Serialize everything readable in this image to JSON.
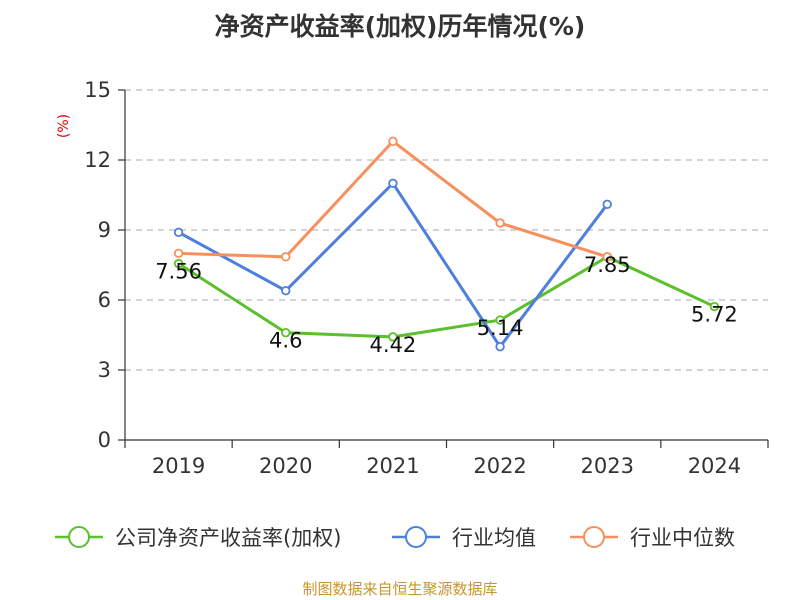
{
  "chart_data": {
    "type": "line",
    "title": "净资产收益率(加权)历年情况(%)",
    "unit_label": "(%)",
    "categories": [
      "2019",
      "2020",
      "2021",
      "2022",
      "2023",
      "2024"
    ],
    "ylim": [
      0,
      15
    ],
    "yticks": [
      0,
      3,
      6,
      9,
      12,
      15
    ],
    "grid": true,
    "series": [
      {
        "name": "公司净资产收益率(加权)",
        "color": "#5bc02b",
        "values": [
          7.56,
          4.6,
          4.42,
          5.14,
          7.85,
          5.72
        ],
        "labels": [
          "7.56",
          "4.6",
          "4.42",
          "5.14",
          "7.85",
          "5.72"
        ]
      },
      {
        "name": "行业均值",
        "color": "#4e7fdc",
        "values": [
          8.9,
          6.4,
          11.0,
          4.0,
          10.1,
          null
        ]
      },
      {
        "name": "行业中位数",
        "color": "#f7905c",
        "values": [
          8.0,
          7.85,
          12.8,
          9.3,
          7.85,
          null
        ]
      }
    ],
    "legend_position": "bottom"
  },
  "source": "制图数据来自恒生聚源数据库"
}
